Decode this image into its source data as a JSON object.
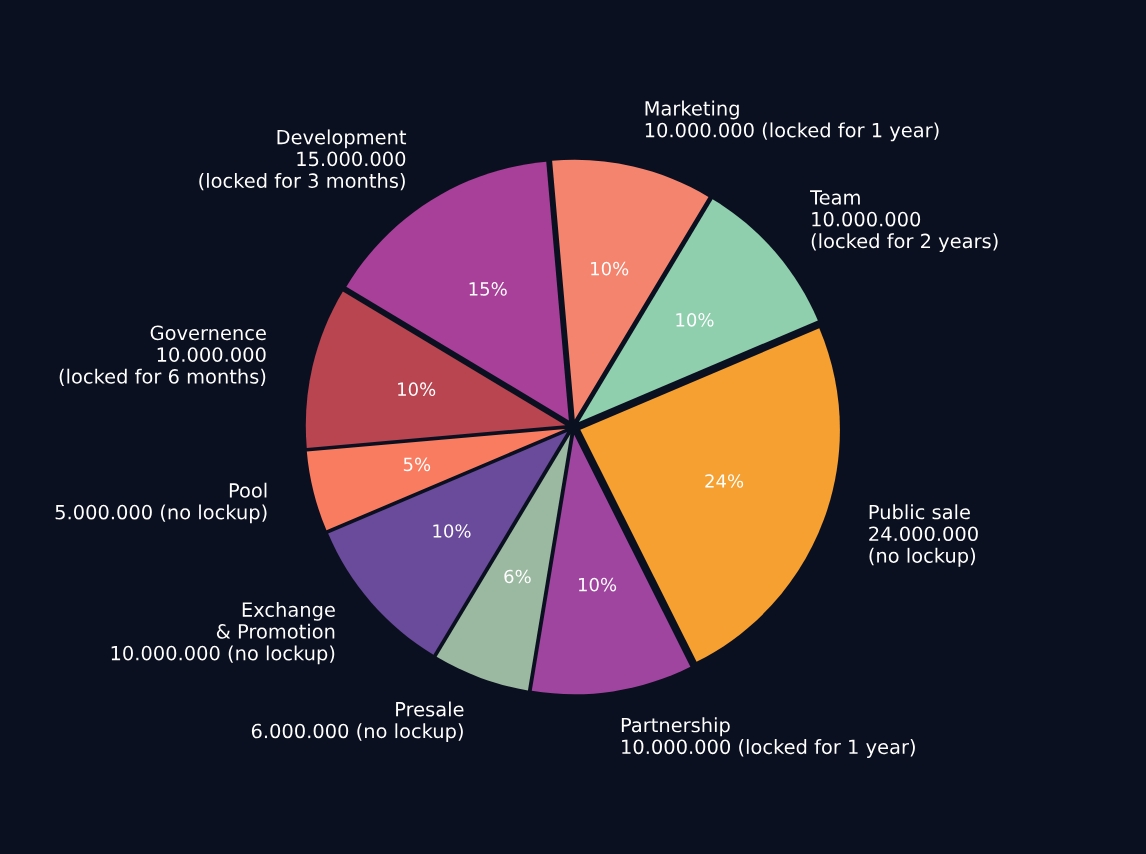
{
  "chart_data": {
    "type": "pie",
    "categories": [
      "Marketing\n10.000.000 (locked for 1 year)",
      "Team\n10.000.000\n(locked for 2 years)",
      "Public sale\n24.000.000\n(no lockup)",
      "Partnership\n10.000.000 (locked for 1 year)",
      "Presale\n6.000.000 (no lockup)",
      "Exchange\n& Promotion\n10.000.000 (no lockup)",
      "Pool\n5.000.000 (no lockup)",
      "Governence\n10.000.000\n(locked for 6 months)",
      "Development\n15.000.000\n(locked for 3 months)"
    ],
    "values": [
      10,
      10,
      24,
      10,
      6,
      10,
      5,
      10,
      15
    ],
    "value_labels": [
      "10%",
      "10%",
      "24%",
      "10%",
      "6%",
      "10%",
      "5%",
      "10%",
      "15%"
    ],
    "colors": [
      "#f4846e",
      "#8fcfae",
      "#f5a030",
      "#a0459f",
      "#9bb9a0",
      "#6a4a9a",
      "#f97c60",
      "#b84550",
      "#a8409a"
    ]
  }
}
